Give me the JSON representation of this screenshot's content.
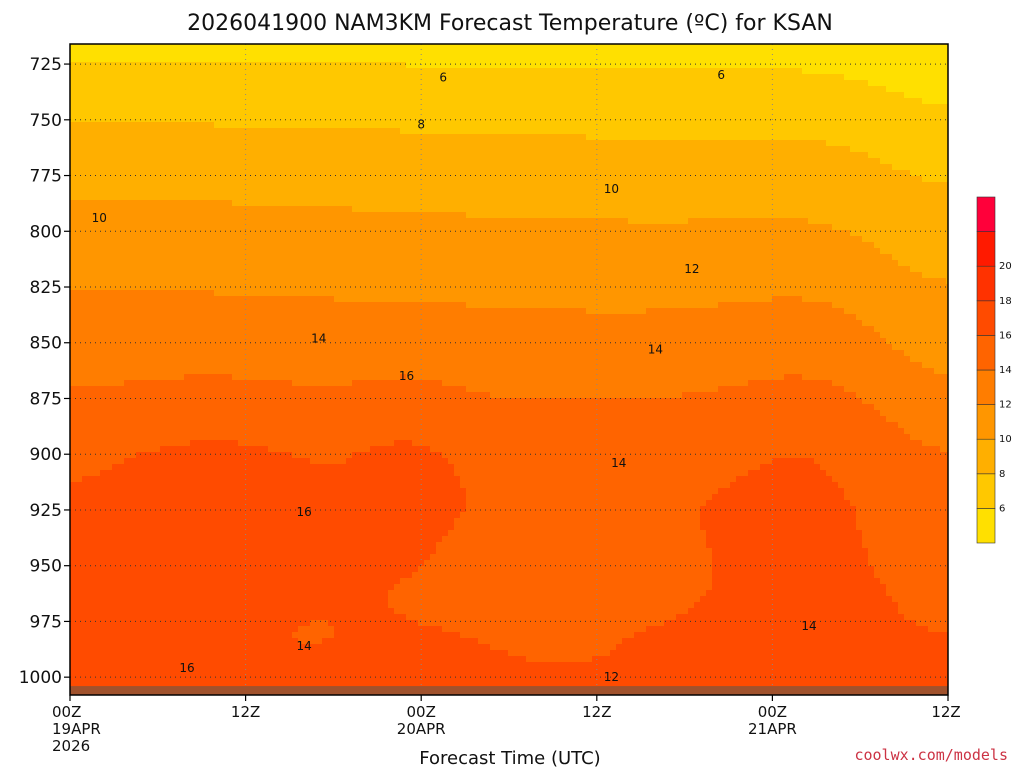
{
  "chart_data": {
    "type": "heatmap",
    "title": "2026041900 NAM3KM Forecast Temperature (ºC) for KSAN",
    "xlabel": "Forecast Time (UTC)",
    "ylabel": "",
    "x_range_hours": [
      0,
      60
    ],
    "y_range_hPa": [
      1008,
      716
    ],
    "y_ticks": [
      725,
      750,
      775,
      800,
      825,
      850,
      875,
      900,
      925,
      950,
      975,
      1000
    ],
    "x_ticks": [
      {
        "hour": 0,
        "lines": [
          "00Z",
          "19APR",
          "2026"
        ]
      },
      {
        "hour": 12,
        "lines": [
          "12Z"
        ]
      },
      {
        "hour": 24,
        "lines": [
          "00Z",
          "20APR"
        ]
      },
      {
        "hour": 36,
        "lines": [
          "12Z"
        ]
      },
      {
        "hour": 48,
        "lines": [
          "00Z",
          "21APR"
        ]
      },
      {
        "hour": 60,
        "lines": [
          "12Z"
        ]
      }
    ],
    "grid": "dotted",
    "contour_levels": [
      6,
      8,
      10,
      12,
      14,
      16,
      18,
      20
    ],
    "colorbar": {
      "placement": "right",
      "levels": [
        6,
        8,
        10,
        12,
        14,
        16,
        18,
        20
      ],
      "colors": [
        "#FFE000",
        "#FFC800",
        "#FFAF00",
        "#FF9600",
        "#FF7D00",
        "#FF6400",
        "#FF4B00",
        "#FF3200",
        "#FF1A00",
        "#FF003A"
      ]
    },
    "contour_labels": [
      {
        "text": "6",
        "hour": 25.5,
        "p": 731
      },
      {
        "text": "6",
        "hour": 44.5,
        "p": 730
      },
      {
        "text": "8",
        "hour": 24.0,
        "p": 752
      },
      {
        "text": "10",
        "hour": 2.0,
        "p": 794
      },
      {
        "text": "10",
        "hour": 37.0,
        "p": 781
      },
      {
        "text": "12",
        "hour": 42.5,
        "p": 817
      },
      {
        "text": "12",
        "hour": 37.0,
        "p": 1000
      },
      {
        "text": "14",
        "hour": 17.0,
        "p": 848
      },
      {
        "text": "14",
        "hour": 40.0,
        "p": 853
      },
      {
        "text": "14",
        "hour": 37.5,
        "p": 904
      },
      {
        "text": "14",
        "hour": 16.0,
        "p": 986
      },
      {
        "text": "14",
        "hour": 50.5,
        "p": 977
      },
      {
        "text": "16",
        "hour": 23.0,
        "p": 865
      },
      {
        "text": "16",
        "hour": 16.0,
        "p": 926
      },
      {
        "text": "16",
        "hour": 8.0,
        "p": 996
      }
    ],
    "temperature_profile": {
      "pressure_hPa": [
        716,
        725,
        750,
        775,
        800,
        825,
        850,
        875,
        900,
        925,
        950,
        975,
        1000,
        1010
      ],
      "temp_C_at_hour0": [
        5.2,
        6.2,
        8.0,
        9.6,
        10.8,
        12.0,
        13.0,
        14.2,
        15.6,
        16.2,
        16.6,
        17.0,
        17.8,
        18.0
      ]
    },
    "ground_level_hPa": 1004,
    "ground_color": "#A0522D"
  },
  "credit": "coolwx.com/models"
}
